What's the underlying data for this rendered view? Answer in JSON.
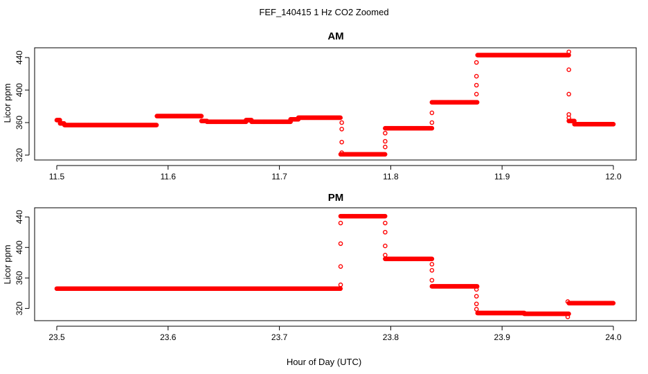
{
  "figure": {
    "title": "FEF_140415  1 Hz CO2 Zoomed",
    "xlabel": "Hour of Day (UTC)"
  },
  "colors": {
    "points": "#ff0000",
    "axis": "#000000",
    "background": "#ffffff"
  },
  "chart_data": [
    {
      "type": "scatter",
      "title": "AM",
      "ylabel": "Licor ppm",
      "xlim": [
        11.5,
        12.0
      ],
      "ylim": [
        314,
        452
      ],
      "xticks": [
        "11.5",
        "11.6",
        "11.7",
        "11.8",
        "11.9",
        "12.0"
      ],
      "yticks": [
        "320",
        "360",
        "400",
        "440"
      ],
      "grid": false,
      "segments": [
        [
          11.5,
          11.503,
          363
        ],
        [
          11.503,
          11.507,
          359
        ],
        [
          11.507,
          11.59,
          357
        ],
        [
          11.59,
          11.63,
          368
        ],
        [
          11.63,
          11.635,
          362
        ],
        [
          11.635,
          11.67,
          361
        ],
        [
          11.67,
          11.675,
          363
        ],
        [
          11.675,
          11.71,
          361
        ],
        [
          11.71,
          11.717,
          364
        ],
        [
          11.717,
          11.755,
          366
        ],
        [
          11.755,
          11.795,
          321
        ],
        [
          11.795,
          11.837,
          353
        ],
        [
          11.837,
          11.878,
          385
        ],
        [
          11.878,
          11.96,
          443
        ],
        [
          11.96,
          11.965,
          362
        ],
        [
          11.965,
          12.0,
          358
        ]
      ],
      "transitions": [
        {
          "x": 11.756,
          "y": [
            360,
            352,
            336,
            323
          ]
        },
        {
          "x": 11.795,
          "y": [
            337,
            330,
            347
          ]
        },
        {
          "x": 11.837,
          "y": [
            360,
            372
          ]
        },
        {
          "x": 11.877,
          "y": [
            395,
            406,
            417,
            434
          ]
        },
        {
          "x": 11.96,
          "y": [
            447,
            425,
            395,
            370,
            366
          ]
        }
      ]
    },
    {
      "type": "scatter",
      "title": "PM",
      "ylabel": "Licor ppm",
      "xlim": [
        23.5,
        24.0
      ],
      "ylim": [
        304,
        452
      ],
      "xticks": [
        "23.5",
        "23.6",
        "23.7",
        "23.8",
        "23.9",
        "24.0"
      ],
      "yticks": [
        "320",
        "360",
        "400",
        "440"
      ],
      "grid": false,
      "segments": [
        [
          23.5,
          23.755,
          346
        ],
        [
          23.755,
          23.795,
          441
        ],
        [
          23.795,
          23.837,
          385
        ],
        [
          23.837,
          23.878,
          349
        ],
        [
          23.878,
          23.92,
          314
        ],
        [
          23.92,
          23.96,
          313
        ],
        [
          23.96,
          24.0,
          327
        ]
      ],
      "transitions": [
        {
          "x": 23.755,
          "y": [
            351,
            375,
            405,
            432
          ]
        },
        {
          "x": 23.795,
          "y": [
            432,
            420,
            402,
            390
          ]
        },
        {
          "x": 23.837,
          "y": [
            378,
            370,
            357
          ]
        },
        {
          "x": 23.877,
          "y": [
            345,
            336,
            326,
            319
          ]
        },
        {
          "x": 23.959,
          "y": [
            309,
            329
          ]
        }
      ]
    }
  ]
}
